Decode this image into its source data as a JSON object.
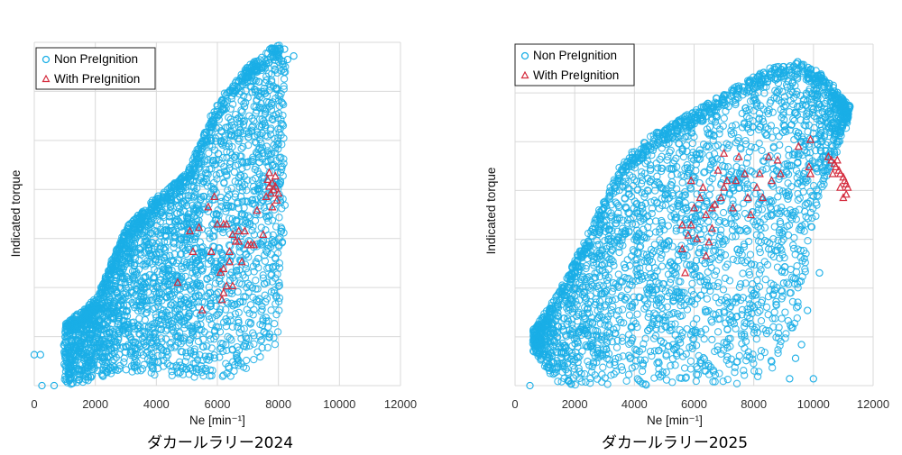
{
  "chart_data": [
    {
      "type": "scatter",
      "caption": "ダカールラリー2024",
      "xlabel": "Ne [min⁻¹]",
      "ylabel": "Indicated torque",
      "xlim": [
        0,
        12000
      ],
      "ylim": [
        0,
        1
      ],
      "xticks": [
        "0",
        "2000",
        "4000",
        "6000",
        "8000",
        "10000",
        "12000"
      ],
      "y_tick_labels_shown": false,
      "grid": true,
      "legend_position": "top-left",
      "colors": {
        "non": "#1aaee6",
        "with": "#d42a3c"
      },
      "series": [
        {
          "name": "Non PreIgnition",
          "marker": "circle",
          "cloud": [
            [
              1000,
              0.0,
              0.18
            ],
            [
              2000,
              0.02,
              0.25
            ],
            [
              3000,
              0.04,
              0.46
            ],
            [
              4000,
              0.03,
              0.55
            ],
            [
              5000,
              0.02,
              0.62
            ],
            [
              6000,
              0.02,
              0.82
            ],
            [
              7000,
              0.03,
              0.93
            ],
            [
              8000,
              0.12,
              1.0
            ],
            [
              8200,
              0.55,
              0.93
            ]
          ],
          "extra": [
            [
              0,
              0.09
            ],
            [
              200,
              0.09
            ],
            [
              250,
              0.0
            ],
            [
              650,
              0.0
            ],
            [
              1000,
              0.09
            ],
            [
              3600,
              0.48
            ],
            [
              3800,
              0.47
            ],
            [
              8200,
              0.98
            ],
            [
              8300,
              0.95
            ],
            [
              8500,
              0.96
            ]
          ]
        },
        {
          "name": "With PreIgnition",
          "marker": "triangle",
          "points": [
            [
              5100,
              0.45
            ],
            [
              5900,
              0.55
            ],
            [
              6000,
              0.47
            ],
            [
              6200,
              0.47
            ],
            [
              5800,
              0.39
            ],
            [
              6300,
              0.47
            ],
            [
              6500,
              0.44
            ],
            [
              6400,
              0.39
            ],
            [
              6600,
              0.42
            ],
            [
              6700,
              0.45
            ],
            [
              6900,
              0.45
            ],
            [
              7000,
              0.41
            ],
            [
              6700,
              0.42
            ],
            [
              7200,
              0.41
            ],
            [
              7300,
              0.51
            ],
            [
              7500,
              0.44
            ],
            [
              7100,
              0.41
            ],
            [
              6800,
              0.36
            ],
            [
              6200,
              0.34
            ],
            [
              6400,
              0.36
            ],
            [
              6100,
              0.33
            ],
            [
              6200,
              0.27
            ],
            [
              6300,
              0.29
            ],
            [
              6500,
              0.29
            ],
            [
              4700,
              0.3
            ],
            [
              6150,
              0.25
            ],
            [
              5500,
              0.22
            ],
            [
              5700,
              0.52
            ],
            [
              5400,
              0.46
            ],
            [
              5200,
              0.39
            ],
            [
              7700,
              0.58
            ],
            [
              7750,
              0.56
            ],
            [
              7800,
              0.59
            ],
            [
              7850,
              0.57
            ],
            [
              7900,
              0.61
            ],
            [
              7700,
              0.62
            ],
            [
              7600,
              0.55
            ],
            [
              7800,
              0.52
            ],
            [
              7950,
              0.54
            ],
            [
              8000,
              0.56
            ],
            [
              7650,
              0.6
            ],
            [
              7900,
              0.58
            ]
          ]
        }
      ]
    },
    {
      "type": "scatter",
      "caption": "ダカールラリー2025",
      "xlabel": "Ne [min⁻¹]",
      "ylabel": "Indicated torque",
      "xlim": [
        0,
        12000
      ],
      "ylim": [
        0,
        1
      ],
      "xticks": [
        "0",
        "2000",
        "4000",
        "6000",
        "8000",
        "10000",
        "12000"
      ],
      "y_tick_labels_shown": false,
      "grid": true,
      "legend_position": "top-left",
      "colors": {
        "non": "#1aaee6",
        "with": "#d42a3c"
      },
      "series": [
        {
          "name": "Non PreIgnition",
          "marker": "circle",
          "cloud": [
            [
              600,
              0.1,
              0.16
            ],
            [
              1500,
              0.0,
              0.28
            ],
            [
              2500,
              0.0,
              0.45
            ],
            [
              3500,
              0.0,
              0.64
            ],
            [
              4500,
              0.0,
              0.73
            ],
            [
              5500,
              0.0,
              0.78
            ],
            [
              6500,
              0.0,
              0.83
            ],
            [
              7500,
              0.0,
              0.88
            ],
            [
              8500,
              0.02,
              0.93
            ],
            [
              9500,
              0.2,
              0.95
            ],
            [
              10200,
              0.55,
              0.92
            ],
            [
              10800,
              0.7,
              0.86
            ],
            [
              11200,
              0.78,
              0.82
            ]
          ],
          "extra": [
            [
              500,
              0.0
            ],
            [
              1200,
              0.2
            ],
            [
              900,
              0.12
            ],
            [
              10200,
              0.33
            ],
            [
              9800,
              0.22
            ],
            [
              9300,
              0.17
            ],
            [
              9600,
              0.12
            ],
            [
              9400,
              0.08
            ],
            [
              9000,
              0.3
            ],
            [
              8700,
              0.28
            ],
            [
              8500,
              0.4
            ],
            [
              9200,
              0.02
            ],
            [
              10000,
              0.02
            ],
            [
              8600,
              0.07
            ]
          ]
        },
        {
          "name": "With PreIgnition",
          "marker": "triangle",
          "points": [
            [
              5600,
              0.47
            ],
            [
              6000,
              0.52
            ],
            [
              6200,
              0.55
            ],
            [
              6400,
              0.5
            ],
            [
              5800,
              0.44
            ],
            [
              6600,
              0.46
            ],
            [
              6300,
              0.58
            ],
            [
              6900,
              0.55
            ],
            [
              7100,
              0.6
            ],
            [
              7400,
              0.6
            ],
            [
              7800,
              0.55
            ],
            [
              8200,
              0.62
            ],
            [
              8300,
              0.55
            ],
            [
              8600,
              0.6
            ],
            [
              8900,
              0.62
            ],
            [
              8500,
              0.67
            ],
            [
              7500,
              0.67
            ],
            [
              7000,
              0.68
            ],
            [
              6800,
              0.63
            ],
            [
              7300,
              0.52
            ],
            [
              7900,
              0.5
            ],
            [
              6500,
              0.42
            ],
            [
              6100,
              0.43
            ],
            [
              5600,
              0.4
            ],
            [
              6400,
              0.38
            ],
            [
              6600,
              0.52
            ],
            [
              7000,
              0.58
            ],
            [
              7700,
              0.62
            ],
            [
              8100,
              0.58
            ],
            [
              8800,
              0.66
            ],
            [
              5900,
              0.6
            ],
            [
              5700,
              0.33
            ],
            [
              5900,
              0.47
            ],
            [
              6700,
              0.53
            ],
            [
              9500,
              0.7
            ],
            [
              9900,
              0.72
            ],
            [
              10500,
              0.67
            ],
            [
              10600,
              0.66
            ],
            [
              10700,
              0.65
            ],
            [
              10750,
              0.64
            ],
            [
              10800,
              0.66
            ],
            [
              10850,
              0.63
            ],
            [
              10900,
              0.62
            ],
            [
              11000,
              0.61
            ],
            [
              11050,
              0.6
            ],
            [
              11100,
              0.59
            ],
            [
              11150,
              0.58
            ],
            [
              11100,
              0.56
            ],
            [
              10650,
              0.62
            ],
            [
              10900,
              0.58
            ],
            [
              11000,
              0.55
            ],
            [
              9900,
              0.62
            ],
            [
              9850,
              0.64
            ]
          ]
        }
      ]
    }
  ]
}
